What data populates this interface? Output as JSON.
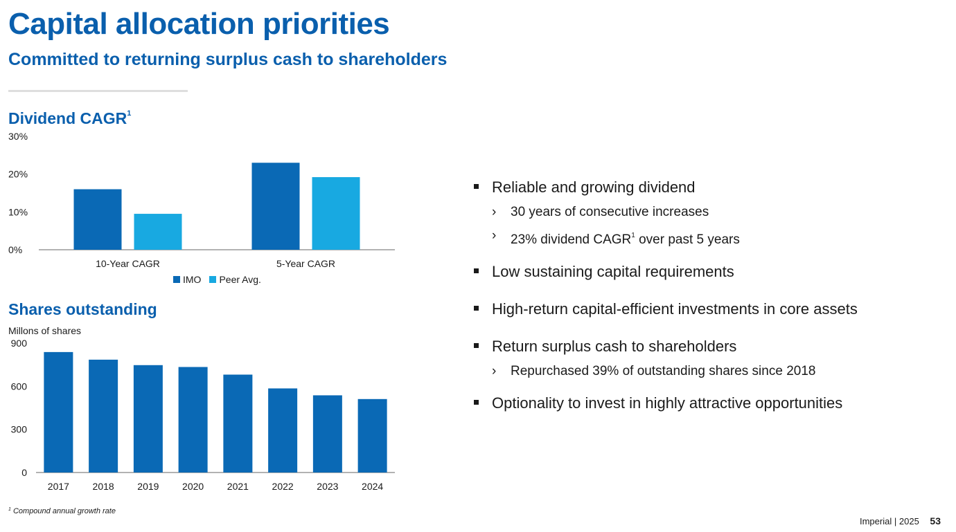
{
  "header": {
    "title": "Capital allocation priorities",
    "subtitle": "Committed to returning surplus cash to shareholders"
  },
  "colors": {
    "accent": "#0a5fad",
    "imo": "#0a69b5",
    "peer": "#18a9e1",
    "shares": "#0a69b5"
  },
  "dividend_section": {
    "title": "Dividend CAGR",
    "title_sup": "1"
  },
  "shares_section": {
    "title": "Shares outstanding"
  },
  "chart_data": [
    {
      "type": "bar",
      "title": "Dividend CAGR",
      "categories": [
        "10-Year CAGR",
        "5-Year CAGR"
      ],
      "series": [
        {
          "name": "IMO",
          "values": [
            16,
            23
          ]
        },
        {
          "name": "Peer Avg.",
          "values": [
            9.5,
            19.2
          ]
        }
      ],
      "yticks": [
        "0%",
        "10%",
        "20%",
        "30%"
      ],
      "ylim": [
        0,
        30
      ],
      "legend": "bottom",
      "grid": false
    },
    {
      "type": "bar",
      "title": "Shares outstanding",
      "ylabel": "Millons of shares",
      "categories": [
        "2017",
        "2018",
        "2019",
        "2020",
        "2021",
        "2022",
        "2023",
        "2024"
      ],
      "values": [
        838,
        785,
        747,
        734,
        681,
        585,
        537,
        511
      ],
      "yticks": [
        "0",
        "300",
        "600",
        "900"
      ],
      "ylim": [
        0,
        900
      ],
      "grid": false
    }
  ],
  "bullets": [
    {
      "text": "Reliable and growing dividend",
      "subs": [
        {
          "text": "30 years of consecutive increases",
          "sup": "",
          "after": ""
        },
        {
          "text": "23% dividend CAGR",
          "sup": "1",
          "after": " over past 5 years"
        }
      ]
    },
    {
      "text": "Low sustaining capital requirements",
      "subs": []
    },
    {
      "text": "High-return capital-efficient investments in core assets",
      "subs": []
    },
    {
      "text": "Return surplus cash to shareholders",
      "subs": [
        {
          "text": "Repurchased 39% of outstanding shares since 2018",
          "sup": "",
          "after": ""
        }
      ]
    },
    {
      "text": "Optionality to invest in highly attractive opportunities",
      "subs": []
    }
  ],
  "footnote": {
    "sup": "1",
    "text": "Compound annual growth rate"
  },
  "footer": {
    "company": "Imperial",
    "separator": "|",
    "year": "2025",
    "page": "53"
  }
}
